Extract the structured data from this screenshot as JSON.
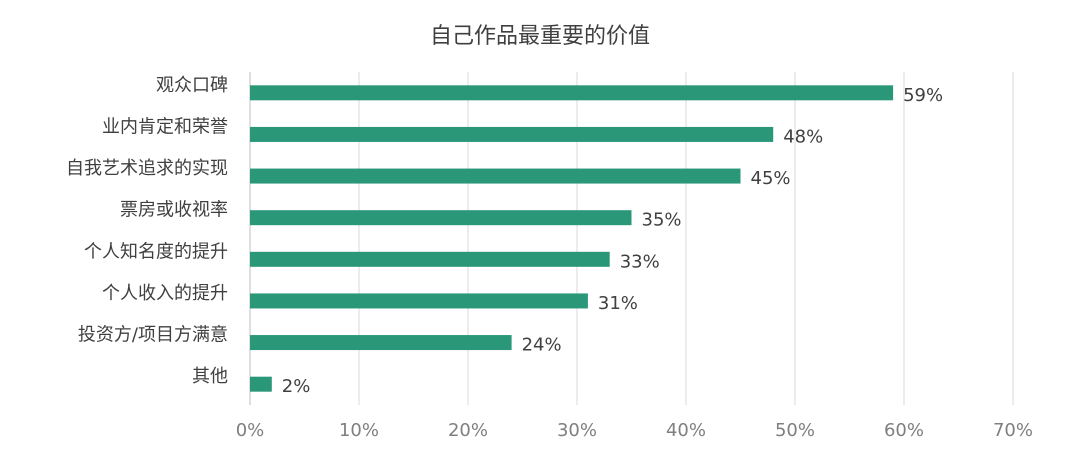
{
  "chart_data": {
    "type": "bar",
    "orientation": "horizontal",
    "title": "自己作品最重要的价值",
    "categories": [
      "观众口碑",
      "业内肯定和荣誉",
      "自我艺术追求的实现",
      "票房或收视率",
      "个人知名度的提升",
      "个人收入的提升",
      "投资方/项目方满意",
      "其他"
    ],
    "values": [
      59,
      48,
      45,
      35,
      33,
      31,
      24,
      2
    ],
    "value_labels": [
      "59%",
      "48%",
      "45%",
      "35%",
      "33%",
      "31%",
      "24%",
      "2%"
    ],
    "xlim": [
      0,
      70
    ],
    "x_ticks": [
      0,
      10,
      20,
      30,
      40,
      50,
      60,
      70
    ],
    "x_tick_labels": [
      "0%",
      "10%",
      "20%",
      "30%",
      "40%",
      "50%",
      "60%",
      "70%"
    ],
    "bar_color": "#2a9779",
    "grid": true,
    "legend": "none"
  }
}
